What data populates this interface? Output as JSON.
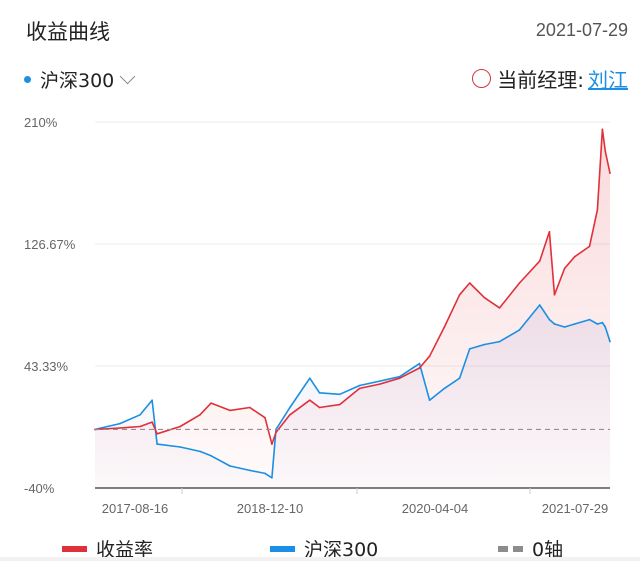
{
  "header": {
    "title": "收益曲线",
    "date": "2021-07-29"
  },
  "benchmark_selector": {
    "label": "沪深300",
    "dot_color": "#1a8fe3"
  },
  "manager": {
    "label": "当前经理:",
    "name": "刘江"
  },
  "chart_data": {
    "type": "line",
    "y_ticks": [
      "210%",
      "126.67%",
      "43.33%",
      "-40%"
    ],
    "ylim": [
      -40,
      210
    ],
    "x_ticks": [
      "2017-08-16",
      "2018-12-10",
      "2020-04-04",
      "2021-07-29"
    ],
    "grid": true,
    "legend_placement": "bottom",
    "zero_line": 0,
    "series": [
      {
        "name": "收益率",
        "color": "#e0303a",
        "points": [
          [
            "2017-02-07",
            0
          ],
          [
            "2017-04-27",
            1
          ],
          [
            "2017-06-30",
            2
          ],
          [
            "2017-08-07",
            5
          ],
          [
            "2017-08-23",
            -3
          ],
          [
            "2017-11-04",
            2
          ],
          [
            "2018-01-06",
            10
          ],
          [
            "2018-02-10",
            18
          ],
          [
            "2018-04-11",
            13
          ],
          [
            "2018-06-13",
            15
          ],
          [
            "2018-07-31",
            8
          ],
          [
            "2018-08-22",
            -10
          ],
          [
            "2018-09-04",
            -2
          ],
          [
            "2018-10-18",
            10
          ],
          [
            "2018-12-20",
            20
          ],
          [
            "2019-01-20",
            15
          ],
          [
            "2019-03-25",
            17
          ],
          [
            "2019-05-27",
            28
          ],
          [
            "2019-07-30",
            31
          ],
          [
            "2019-10-01",
            35
          ],
          [
            "2019-12-03",
            42
          ],
          [
            "2020-01-04",
            50
          ],
          [
            "2020-02-20",
            70
          ],
          [
            "2020-04-08",
            92
          ],
          [
            "2020-05-10",
            100
          ],
          [
            "2020-06-26",
            90
          ],
          [
            "2020-08-13",
            83
          ],
          [
            "2020-10-15",
            100
          ],
          [
            "2020-12-18",
            115
          ],
          [
            "2021-01-18",
            135
          ],
          [
            "2021-02-03",
            92
          ],
          [
            "2021-03-07",
            110
          ],
          [
            "2021-04-08",
            118
          ],
          [
            "2021-05-25",
            125
          ],
          [
            "2021-06-19",
            150
          ],
          [
            "2021-07-05",
            205
          ],
          [
            "2021-07-14",
            190
          ],
          [
            "2021-07-29",
            175
          ]
        ]
      },
      {
        "name": "沪深300",
        "color": "#1a8fe3",
        "points": [
          [
            "2017-02-07",
            0
          ],
          [
            "2017-04-27",
            4
          ],
          [
            "2017-06-30",
            10
          ],
          [
            "2017-08-07",
            20
          ],
          [
            "2017-08-23",
            -10
          ],
          [
            "2017-11-04",
            -12
          ],
          [
            "2018-01-06",
            -15
          ],
          [
            "2018-02-10",
            -18
          ],
          [
            "2018-04-11",
            -25
          ],
          [
            "2018-06-13",
            -28
          ],
          [
            "2018-07-31",
            -30
          ],
          [
            "2018-08-22",
            -33
          ],
          [
            "2018-09-04",
            0
          ],
          [
            "2018-10-18",
            15
          ],
          [
            "2018-12-20",
            35
          ],
          [
            "2019-01-20",
            25
          ],
          [
            "2019-03-25",
            24
          ],
          [
            "2019-05-27",
            30
          ],
          [
            "2019-07-30",
            33
          ],
          [
            "2019-10-01",
            36
          ],
          [
            "2019-12-03",
            45
          ],
          [
            "2020-01-04",
            20
          ],
          [
            "2020-02-20",
            28
          ],
          [
            "2020-04-08",
            35
          ],
          [
            "2020-05-10",
            55
          ],
          [
            "2020-06-26",
            58
          ],
          [
            "2020-08-13",
            60
          ],
          [
            "2020-10-15",
            68
          ],
          [
            "2020-12-18",
            85
          ],
          [
            "2021-01-18",
            75
          ],
          [
            "2021-02-03",
            72
          ],
          [
            "2021-03-07",
            70
          ],
          [
            "2021-04-08",
            72
          ],
          [
            "2021-05-25",
            75
          ],
          [
            "2021-06-19",
            72
          ],
          [
            "2021-07-05",
            73
          ],
          [
            "2021-07-14",
            70
          ],
          [
            "2021-07-29",
            60
          ]
        ]
      }
    ]
  },
  "legend": [
    {
      "label": "收益率",
      "color": "#e0303a"
    },
    {
      "label": "沪深300",
      "color": "#1a8fe3"
    },
    {
      "label": "0轴",
      "color": "#8c8c8c"
    }
  ]
}
